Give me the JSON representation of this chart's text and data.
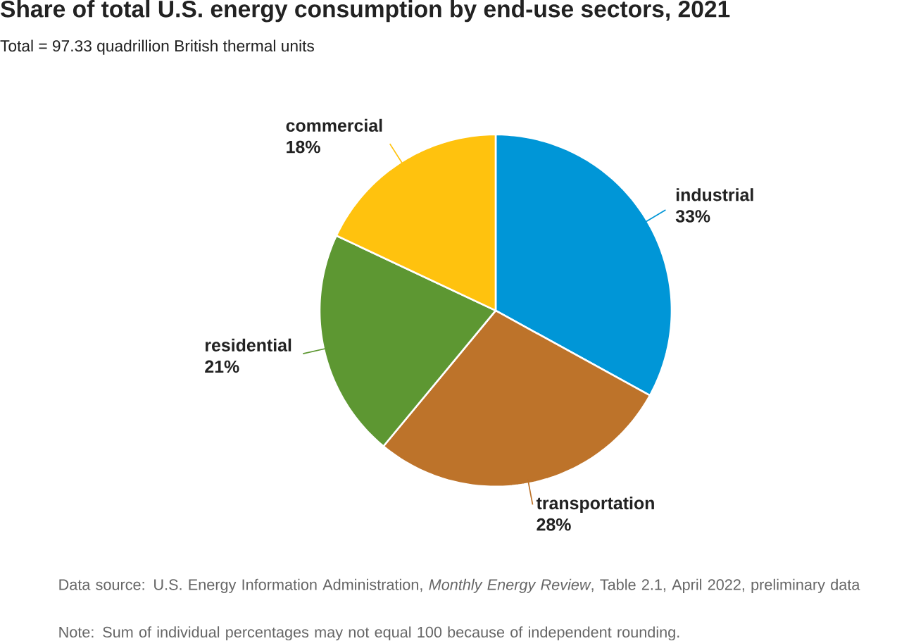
{
  "chart_data": {
    "type": "pie",
    "title": "Share of total U.S. energy consumption by end-use sectors, 2021",
    "subtitle": "Total = 97.33 quadrillion British thermal units",
    "categories": [
      "industrial",
      "transportation",
      "residential",
      "commercial"
    ],
    "values": [
      33,
      28,
      21,
      18
    ],
    "value_labels": [
      "33%",
      "28%",
      "21%",
      "18%"
    ],
    "colors": [
      "#0096d7",
      "#bd732a",
      "#5d9732",
      "#ffc20e"
    ],
    "annotations": [
      "Data source: U.S. Energy Information Administration, *Monthly Energy Review*, Table 2.1, April 2022, preliminary data",
      "Note: Sum of individual percentages may not equal 100 because of independent rounding."
    ]
  }
}
